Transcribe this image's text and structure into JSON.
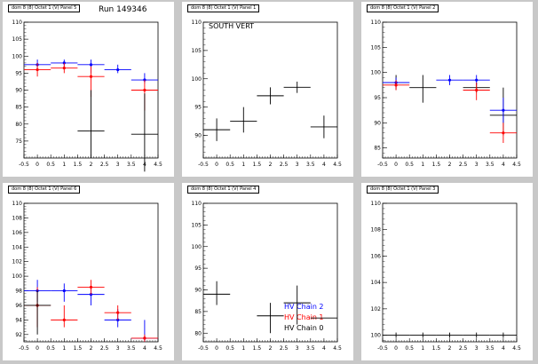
{
  "chart_data": [
    {
      "type": "scatter",
      "title": "dom 8 (8) Octet 1 (V) Panel 5",
      "annotation": "Run 149346",
      "xlim": [
        -0.5,
        4.5
      ],
      "ylim": [
        70,
        110
      ],
      "xticks": [
        "-0.5",
        "0",
        "0.5",
        "1",
        "1.5",
        "2",
        "2.5",
        "3",
        "3.5",
        "4",
        "4.5"
      ],
      "yticks": [
        "75",
        "80",
        "85",
        "90",
        "95",
        "100",
        "105",
        "110"
      ],
      "series": [
        {
          "color": "#0000ff",
          "points": [
            {
              "x": 0,
              "y": 97.5,
              "ylo": 96,
              "yhi": 99,
              "xhw": 0.5
            },
            {
              "x": 1,
              "y": 98,
              "ylo": 97,
              "yhi": 99,
              "xhw": 0.5
            },
            {
              "x": 2,
              "y": 97.5,
              "ylo": 95,
              "yhi": 99,
              "xhw": 0.5
            },
            {
              "x": 3,
              "y": 96,
              "ylo": 95,
              "yhi": 97.5,
              "xhw": 0.5
            },
            {
              "x": 4,
              "y": 93,
              "ylo": 92,
              "yhi": 95,
              "xhw": 0.5
            }
          ]
        },
        {
          "color": "#ff0000",
          "points": [
            {
              "x": 0,
              "y": 96,
              "ylo": 94,
              "yhi": 98,
              "xhw": 0.5
            },
            {
              "x": 1,
              "y": 96.5,
              "ylo": 95,
              "yhi": 98,
              "xhw": 0.5
            },
            {
              "x": 2,
              "y": 94,
              "ylo": 88,
              "yhi": 97,
              "xhw": 0.5
            },
            {
              "x": 4,
              "y": 90,
              "ylo": 84,
              "yhi": 93,
              "xhw": 0.5
            }
          ]
        },
        {
          "color": "#000000",
          "points": [
            {
              "x": 2,
              "y": 78,
              "ylo": 70,
              "yhi": 90,
              "xhw": 0.5
            },
            {
              "x": 4,
              "y": 77,
              "ylo": 66,
              "yhi": 89,
              "xhw": 0.5
            }
          ]
        }
      ]
    },
    {
      "type": "scatter",
      "title": "dom 8 (8) Octet 1 (V) Panel 1",
      "annotation": "SOUTH VERT",
      "xlim": [
        -0.5,
        4.5
      ],
      "ylim": [
        86,
        110
      ],
      "xticks": [
        "-0.5",
        "0",
        "0.5",
        "1",
        "1.5",
        "2",
        "2.5",
        "3",
        "3.5",
        "4",
        "4.5"
      ],
      "yticks": [
        "90",
        "95",
        "100",
        "105",
        "110"
      ],
      "series": [
        {
          "color": "#000000",
          "points": [
            {
              "x": 0,
              "y": 91,
              "ylo": 89,
              "yhi": 93,
              "xhw": 0.5
            },
            {
              "x": 1,
              "y": 92.5,
              "ylo": 90.5,
              "yhi": 95,
              "xhw": 0.5
            },
            {
              "x": 2,
              "y": 97,
              "ylo": 95.5,
              "yhi": 98.5,
              "xhw": 0.5
            },
            {
              "x": 3,
              "y": 98.5,
              "ylo": 97.5,
              "yhi": 99.5,
              "xhw": 0.5
            },
            {
              "x": 4,
              "y": 91.5,
              "ylo": 89.5,
              "yhi": 93.5,
              "xhw": 0.5
            }
          ]
        }
      ]
    },
    {
      "type": "scatter",
      "title": "dom 8 (8) Octet 1 (V) Panel 2",
      "annotation": "",
      "xlim": [
        -0.5,
        4.5
      ],
      "ylim": [
        83,
        110
      ],
      "xticks": [
        "-0.5",
        "0",
        "0.5",
        "1",
        "1.5",
        "2",
        "2.5",
        "3",
        "3.5",
        "4",
        "4.5"
      ],
      "yticks": [
        "85",
        "90",
        "95",
        "100",
        "105",
        "110"
      ],
      "series": [
        {
          "color": "#000000",
          "points": [
            {
              "x": 0,
              "y": 98,
              "ylo": 96.5,
              "yhi": 99.5,
              "xhw": 0.5
            },
            {
              "x": 1,
              "y": 97,
              "ylo": 94,
              "yhi": 99.5,
              "xhw": 0.5
            },
            {
              "x": 3,
              "y": 97,
              "ylo": 96,
              "yhi": 98,
              "xhw": 0.5
            },
            {
              "x": 4,
              "y": 91.5,
              "ylo": 87.5,
              "yhi": 97,
              "xhw": 0.5
            }
          ]
        },
        {
          "color": "#0000ff",
          "points": [
            {
              "x": 0,
              "y": 98,
              "ylo": 97,
              "yhi": 99,
              "xhw": 0.5
            },
            {
              "x": 2,
              "y": 98.5,
              "ylo": 97.5,
              "yhi": 99.5,
              "xhw": 0.5
            },
            {
              "x": 3,
              "y": 98.5,
              "ylo": 97.5,
              "yhi": 99.5,
              "xhw": 0.5
            },
            {
              "x": 4,
              "y": 92.5,
              "ylo": 90,
              "yhi": 95,
              "xhw": 0.5
            }
          ]
        },
        {
          "color": "#ff0000",
          "points": [
            {
              "x": 0,
              "y": 97.5,
              "ylo": 96.5,
              "yhi": 98.5,
              "xhw": 0.5
            },
            {
              "x": 3,
              "y": 96.5,
              "ylo": 94.5,
              "yhi": 98,
              "xhw": 0.5
            },
            {
              "x": 4,
              "y": 88,
              "ylo": 86,
              "yhi": 90,
              "xhw": 0.5
            }
          ]
        }
      ]
    },
    {
      "type": "scatter",
      "title": "dom 8 (8) Octet 1 (V) Panel 6",
      "annotation": "",
      "xlim": [
        -0.5,
        4.5
      ],
      "ylim": [
        91,
        110
      ],
      "xticks": [
        "-0.5",
        "0",
        "0.5",
        "1",
        "1.5",
        "2",
        "2.5",
        "3",
        "3.5",
        "4",
        "4.5"
      ],
      "yticks": [
        "92",
        "94",
        "96",
        "98",
        "100",
        "102",
        "104",
        "106",
        "108",
        "110"
      ],
      "series": [
        {
          "color": "#0000ff",
          "points": [
            {
              "x": 0,
              "y": 98,
              "ylo": 96.5,
              "yhi": 99.5,
              "xhw": 0.5
            },
            {
              "x": 1,
              "y": 98,
              "ylo": 96.5,
              "yhi": 99,
              "xhw": 0.5
            },
            {
              "x": 2,
              "y": 97.5,
              "ylo": 96,
              "yhi": 98.5,
              "xhw": 0.5
            },
            {
              "x": 3,
              "y": 94,
              "ylo": 93,
              "yhi": 95.5,
              "xhw": 0.5
            },
            {
              "x": 4,
              "y": 91.5,
              "ylo": 91,
              "yhi": 94,
              "xhw": 0.5
            }
          ]
        },
        {
          "color": "#ff0000",
          "points": [
            {
              "x": 0,
              "y": 96,
              "ylo": 93,
              "yhi": 98.5,
              "xhw": 0.5
            },
            {
              "x": 1,
              "y": 94,
              "ylo": 93,
              "yhi": 96,
              "xhw": 0.5
            },
            {
              "x": 2,
              "y": 98.5,
              "ylo": 97.5,
              "yhi": 99.5,
              "xhw": 0.5
            },
            {
              "x": 3,
              "y": 95,
              "ylo": 94,
              "yhi": 96,
              "xhw": 0.5
            },
            {
              "x": 4,
              "y": 91.5,
              "ylo": 91,
              "yhi": 92,
              "xhw": 0.5
            }
          ]
        },
        {
          "color": "#000000",
          "points": [
            {
              "x": 0,
              "y": 96,
              "ylo": 92,
              "yhi": 98,
              "xhw": 0.5
            }
          ]
        }
      ]
    },
    {
      "type": "scatter",
      "title": "dom 8 (8) Octet 1 (V) Panel 4",
      "annotation": "",
      "xlim": [
        -0.5,
        4.5
      ],
      "ylim": [
        78,
        110
      ],
      "xticks": [
        "-0.5",
        "0",
        "0.5",
        "1",
        "1.5",
        "2",
        "2.5",
        "3",
        "3.5",
        "4",
        "4.5"
      ],
      "yticks": [
        "80",
        "85",
        "90",
        "95",
        "100",
        "105",
        "110"
      ],
      "legend": [
        {
          "label": "HV Chain 2",
          "color": "#0000ff"
        },
        {
          "label": "HV Chain 1",
          "color": "#ff0000"
        },
        {
          "label": "HV Chain 0",
          "color": "#000000"
        }
      ],
      "series": [
        {
          "color": "#000000",
          "points": [
            {
              "x": 0,
              "y": 89,
              "ylo": 86.5,
              "yhi": 92,
              "xhw": 0.5
            },
            {
              "x": 2,
              "y": 84,
              "ylo": 80,
              "yhi": 87,
              "xhw": 0.5
            },
            {
              "x": 3,
              "y": 87,
              "ylo": 82,
              "yhi": 91,
              "xhw": 0.5
            },
            {
              "x": 4,
              "y": 83.5,
              "ylo": 83.5,
              "yhi": 83.5,
              "xhw": 0.5
            }
          ]
        }
      ]
    },
    {
      "type": "scatter",
      "title": "dom 8 (8) Octet 1 (V) Panel 3",
      "annotation": "",
      "xlim": [
        -0.5,
        4.5
      ],
      "ylim": [
        99.5,
        110
      ],
      "xticks": [
        "-0.5",
        "0",
        "0.5",
        "1",
        "1.5",
        "2",
        "2.5",
        "3",
        "3.5",
        "4",
        "4.5"
      ],
      "yticks": [
        "100",
        "102",
        "104",
        "106",
        "108",
        "110"
      ],
      "series": [
        {
          "color": "#000000",
          "points": [
            {
              "x": 0,
              "y": 100,
              "ylo": 99.8,
              "yhi": 100.2,
              "xhw": 0.5
            },
            {
              "x": 1,
              "y": 100,
              "ylo": 99.8,
              "yhi": 100.2,
              "xhw": 0.5
            },
            {
              "x": 2,
              "y": 100,
              "ylo": 99.8,
              "yhi": 100.2,
              "xhw": 0.5
            },
            {
              "x": 3,
              "y": 100,
              "ylo": 99.8,
              "yhi": 100.2,
              "xhw": 0.5
            },
            {
              "x": 4,
              "y": 100,
              "ylo": 99.8,
              "yhi": 100.2,
              "xhw": 0.5
            }
          ]
        }
      ]
    }
  ]
}
